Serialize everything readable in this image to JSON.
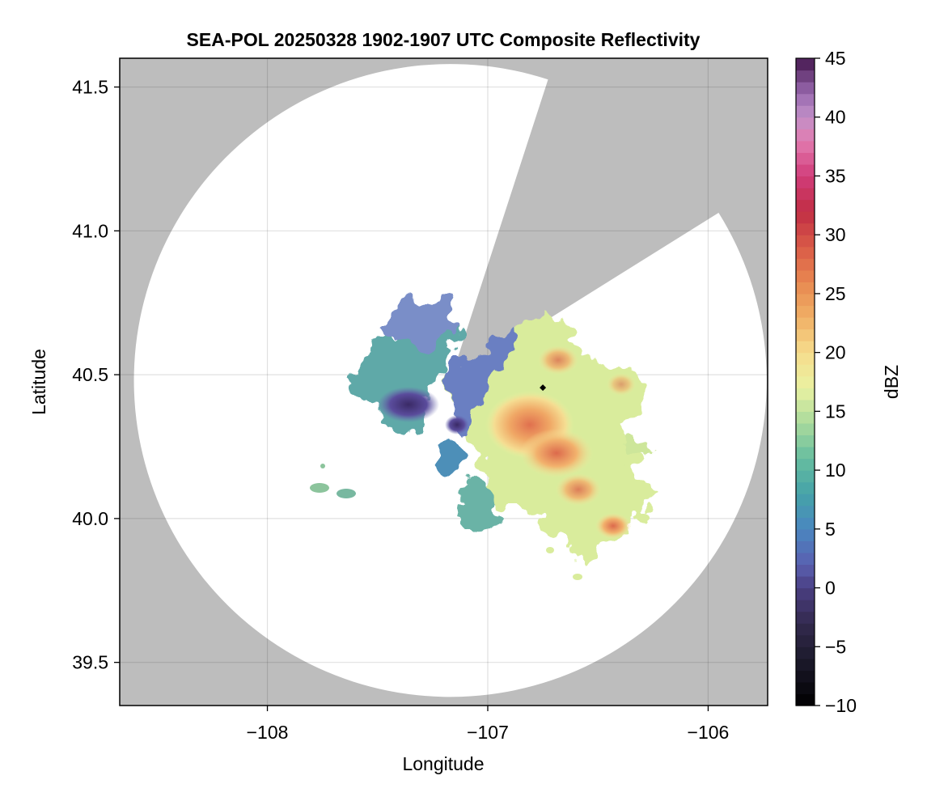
{
  "chart_data": {
    "type": "heatmap",
    "title": "SEA-POL 20250328 1902-1907 UTC Composite Reflectivity",
    "xlabel": "Longitude",
    "ylabel": "Latitude",
    "xlim": [
      -108.67,
      -105.73
    ],
    "ylim": [
      39.35,
      41.6
    ],
    "xticks": [
      -108,
      -107,
      -106
    ],
    "xtick_labels": [
      "−108",
      "−107",
      "−106"
    ],
    "yticks": [
      39.5,
      40.0,
      40.5,
      41.0,
      41.5
    ],
    "ytick_labels": [
      "39.5",
      "40.0",
      "40.5",
      "41.0",
      "41.5"
    ],
    "grid": true,
    "no_data_color": "#bdbdbd",
    "radar": {
      "center_lon": -107.17,
      "center_lat": 40.48,
      "range_radius_deg_lat": 1.1,
      "blocked_sectors_deg_from_north": [
        [
          18,
          58
        ]
      ]
    },
    "markers": [
      {
        "lon": -106.75,
        "lat": 40.455,
        "shape": "diamond",
        "color": "#000000"
      }
    ],
    "echo_regions": [
      {
        "name": "",
        "lon": -107.42,
        "lat": 40.5,
        "dbz_range": [
          -5,
          12
        ],
        "peak_dbz": 5
      },
      {
        "name": "",
        "lon": -106.72,
        "lat": 40.3,
        "dbz_range": [
          10,
          28
        ],
        "peak_dbz": 27
      },
      {
        "name": "",
        "lon": -106.5,
        "lat": 40.0,
        "dbz_range": [
          10,
          28
        ],
        "peak_dbz": 27
      }
    ],
    "colorbar": {
      "label": "dBZ",
      "vmin": -10,
      "vmax": 45,
      "ticks": [
        -10,
        -5,
        0,
        5,
        10,
        15,
        20,
        25,
        30,
        35,
        40,
        45
      ],
      "tick_labels": [
        "−10",
        "−5",
        "0",
        "5",
        "10",
        "15",
        "20",
        "25",
        "30",
        "35",
        "40",
        "45"
      ],
      "colormap": "spectral-like (black - purple - blue - green - yellow - orange - red - pink - purple)"
    }
  }
}
